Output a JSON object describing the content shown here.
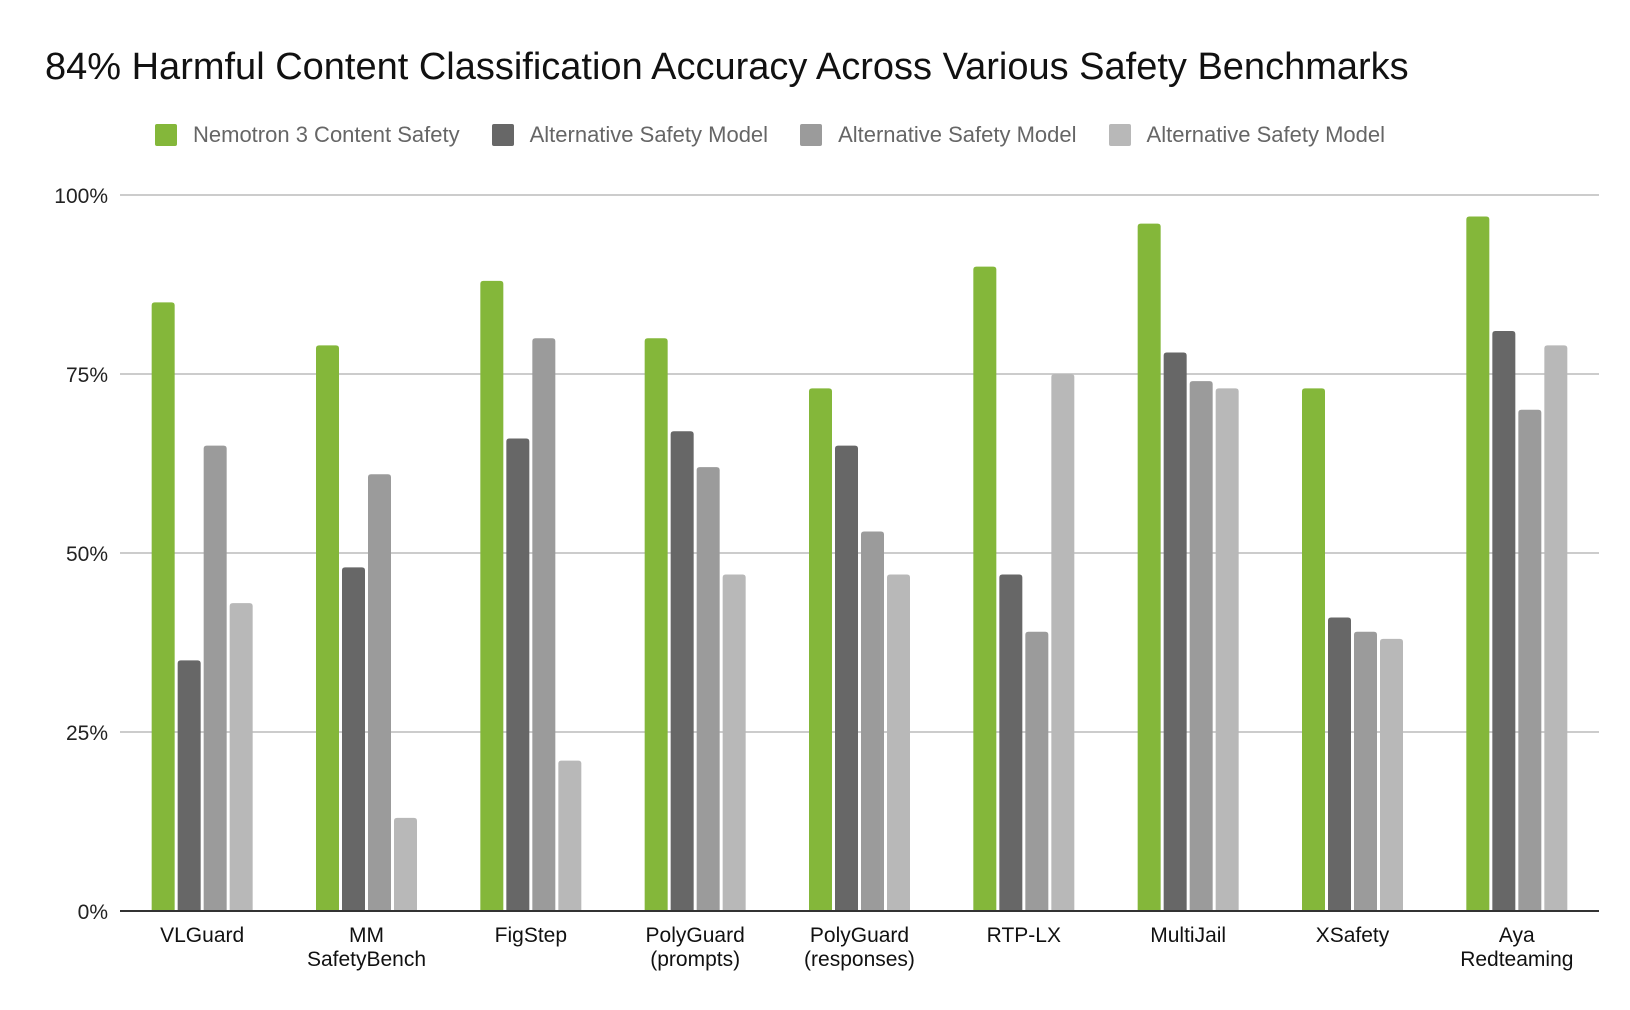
{
  "chart_data": {
    "type": "bar",
    "title": "84% Harmful Content Classification Accuracy Across Various Safety Benchmarks",
    "xlabel": "",
    "ylabel": "",
    "ylim": [
      0,
      100
    ],
    "yticks": [
      "0%",
      "25%",
      "50%",
      "75%",
      "100%"
    ],
    "grid": true,
    "legend_position": "top",
    "categories": [
      [
        "VLGuard"
      ],
      [
        "MM",
        "SafetyBench"
      ],
      [
        "FigStep"
      ],
      [
        "PolyGuard",
        "(prompts)"
      ],
      [
        "PolyGuard",
        "(responses)"
      ],
      [
        "RTP-LX"
      ],
      [
        "MultiJail"
      ],
      [
        "XSafety"
      ],
      [
        "Aya",
        "Redteaming"
      ]
    ],
    "series": [
      {
        "name": "Nemotron 3 Content Safety",
        "color": "#84b73a",
        "values": [
          85,
          79,
          88,
          80,
          73,
          90,
          96,
          73,
          97
        ]
      },
      {
        "name": "Alternative Safety Model",
        "color": "#676767",
        "values": [
          35,
          48,
          66,
          67,
          65,
          47,
          78,
          41,
          81
        ]
      },
      {
        "name": "Alternative Safety Model",
        "color": "#9b9b9b",
        "values": [
          65,
          61,
          80,
          62,
          53,
          39,
          74,
          39,
          70
        ]
      },
      {
        "name": "Alternative Safety Model",
        "color": "#b8b8b8",
        "values": [
          43,
          13,
          21,
          47,
          47,
          75,
          73,
          38,
          79
        ]
      }
    ]
  }
}
